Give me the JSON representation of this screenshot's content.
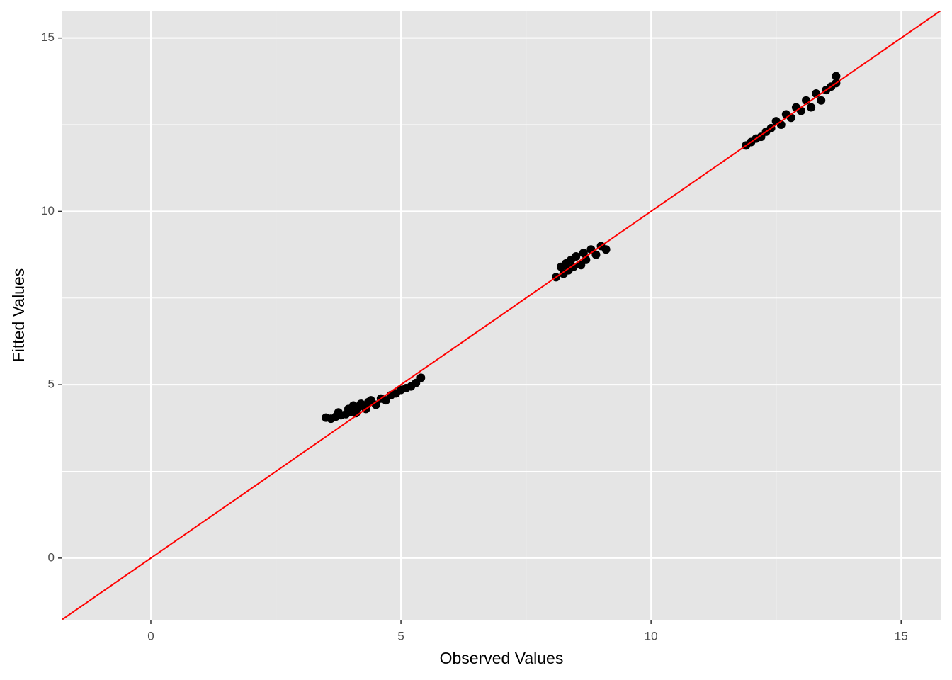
{
  "chart_data": {
    "type": "scatter",
    "x_label": "Observed Values",
    "y_label": "Fitted Values",
    "xlim": [
      -1.77,
      15.79
    ],
    "ylim": [
      -1.78,
      15.79
    ],
    "xticks": [
      0,
      5,
      10,
      15
    ],
    "yticks": [
      0,
      5,
      10,
      15
    ],
    "minor_grid": [
      2.5,
      7.5,
      12.5
    ],
    "grid": true,
    "background": "#e5e5e5",
    "color": "#000000",
    "x": [
      3.5,
      3.6,
      3.7,
      3.75,
      3.8,
      3.9,
      3.95,
      4.0,
      4.05,
      4.1,
      4.15,
      4.2,
      4.3,
      4.35,
      4.4,
      4.5,
      4.6,
      4.7,
      4.8,
      4.9,
      5.0,
      5.1,
      5.2,
      5.3,
      5.4,
      8.1,
      8.2,
      8.25,
      8.3,
      8.35,
      8.4,
      8.45,
      8.5,
      8.6,
      8.65,
      8.7,
      8.8,
      8.9,
      9.0,
      9.1,
      11.9,
      12.0,
      12.1,
      12.2,
      12.3,
      12.4,
      12.5,
      12.6,
      12.7,
      12.8,
      12.9,
      13.0,
      13.1,
      13.2,
      13.3,
      13.4,
      13.5,
      13.6,
      13.7,
      13.7
    ],
    "values": [
      4.05,
      4.02,
      4.08,
      4.2,
      4.12,
      4.15,
      4.3,
      4.22,
      4.4,
      4.18,
      4.35,
      4.45,
      4.3,
      4.5,
      4.55,
      4.42,
      4.6,
      4.55,
      4.7,
      4.75,
      4.85,
      4.9,
      4.95,
      5.05,
      5.2,
      8.1,
      8.4,
      8.2,
      8.5,
      8.3,
      8.6,
      8.4,
      8.7,
      8.45,
      8.8,
      8.6,
      8.9,
      8.75,
      9.0,
      8.9,
      11.9,
      12.0,
      12.1,
      12.15,
      12.3,
      12.4,
      12.6,
      12.5,
      12.8,
      12.7,
      13.0,
      12.9,
      13.2,
      13.0,
      13.4,
      13.2,
      13.5,
      13.6,
      13.9,
      13.7
    ],
    "reference_line": {
      "intercept": 0,
      "slope": 1,
      "color": "#ff0000"
    }
  }
}
